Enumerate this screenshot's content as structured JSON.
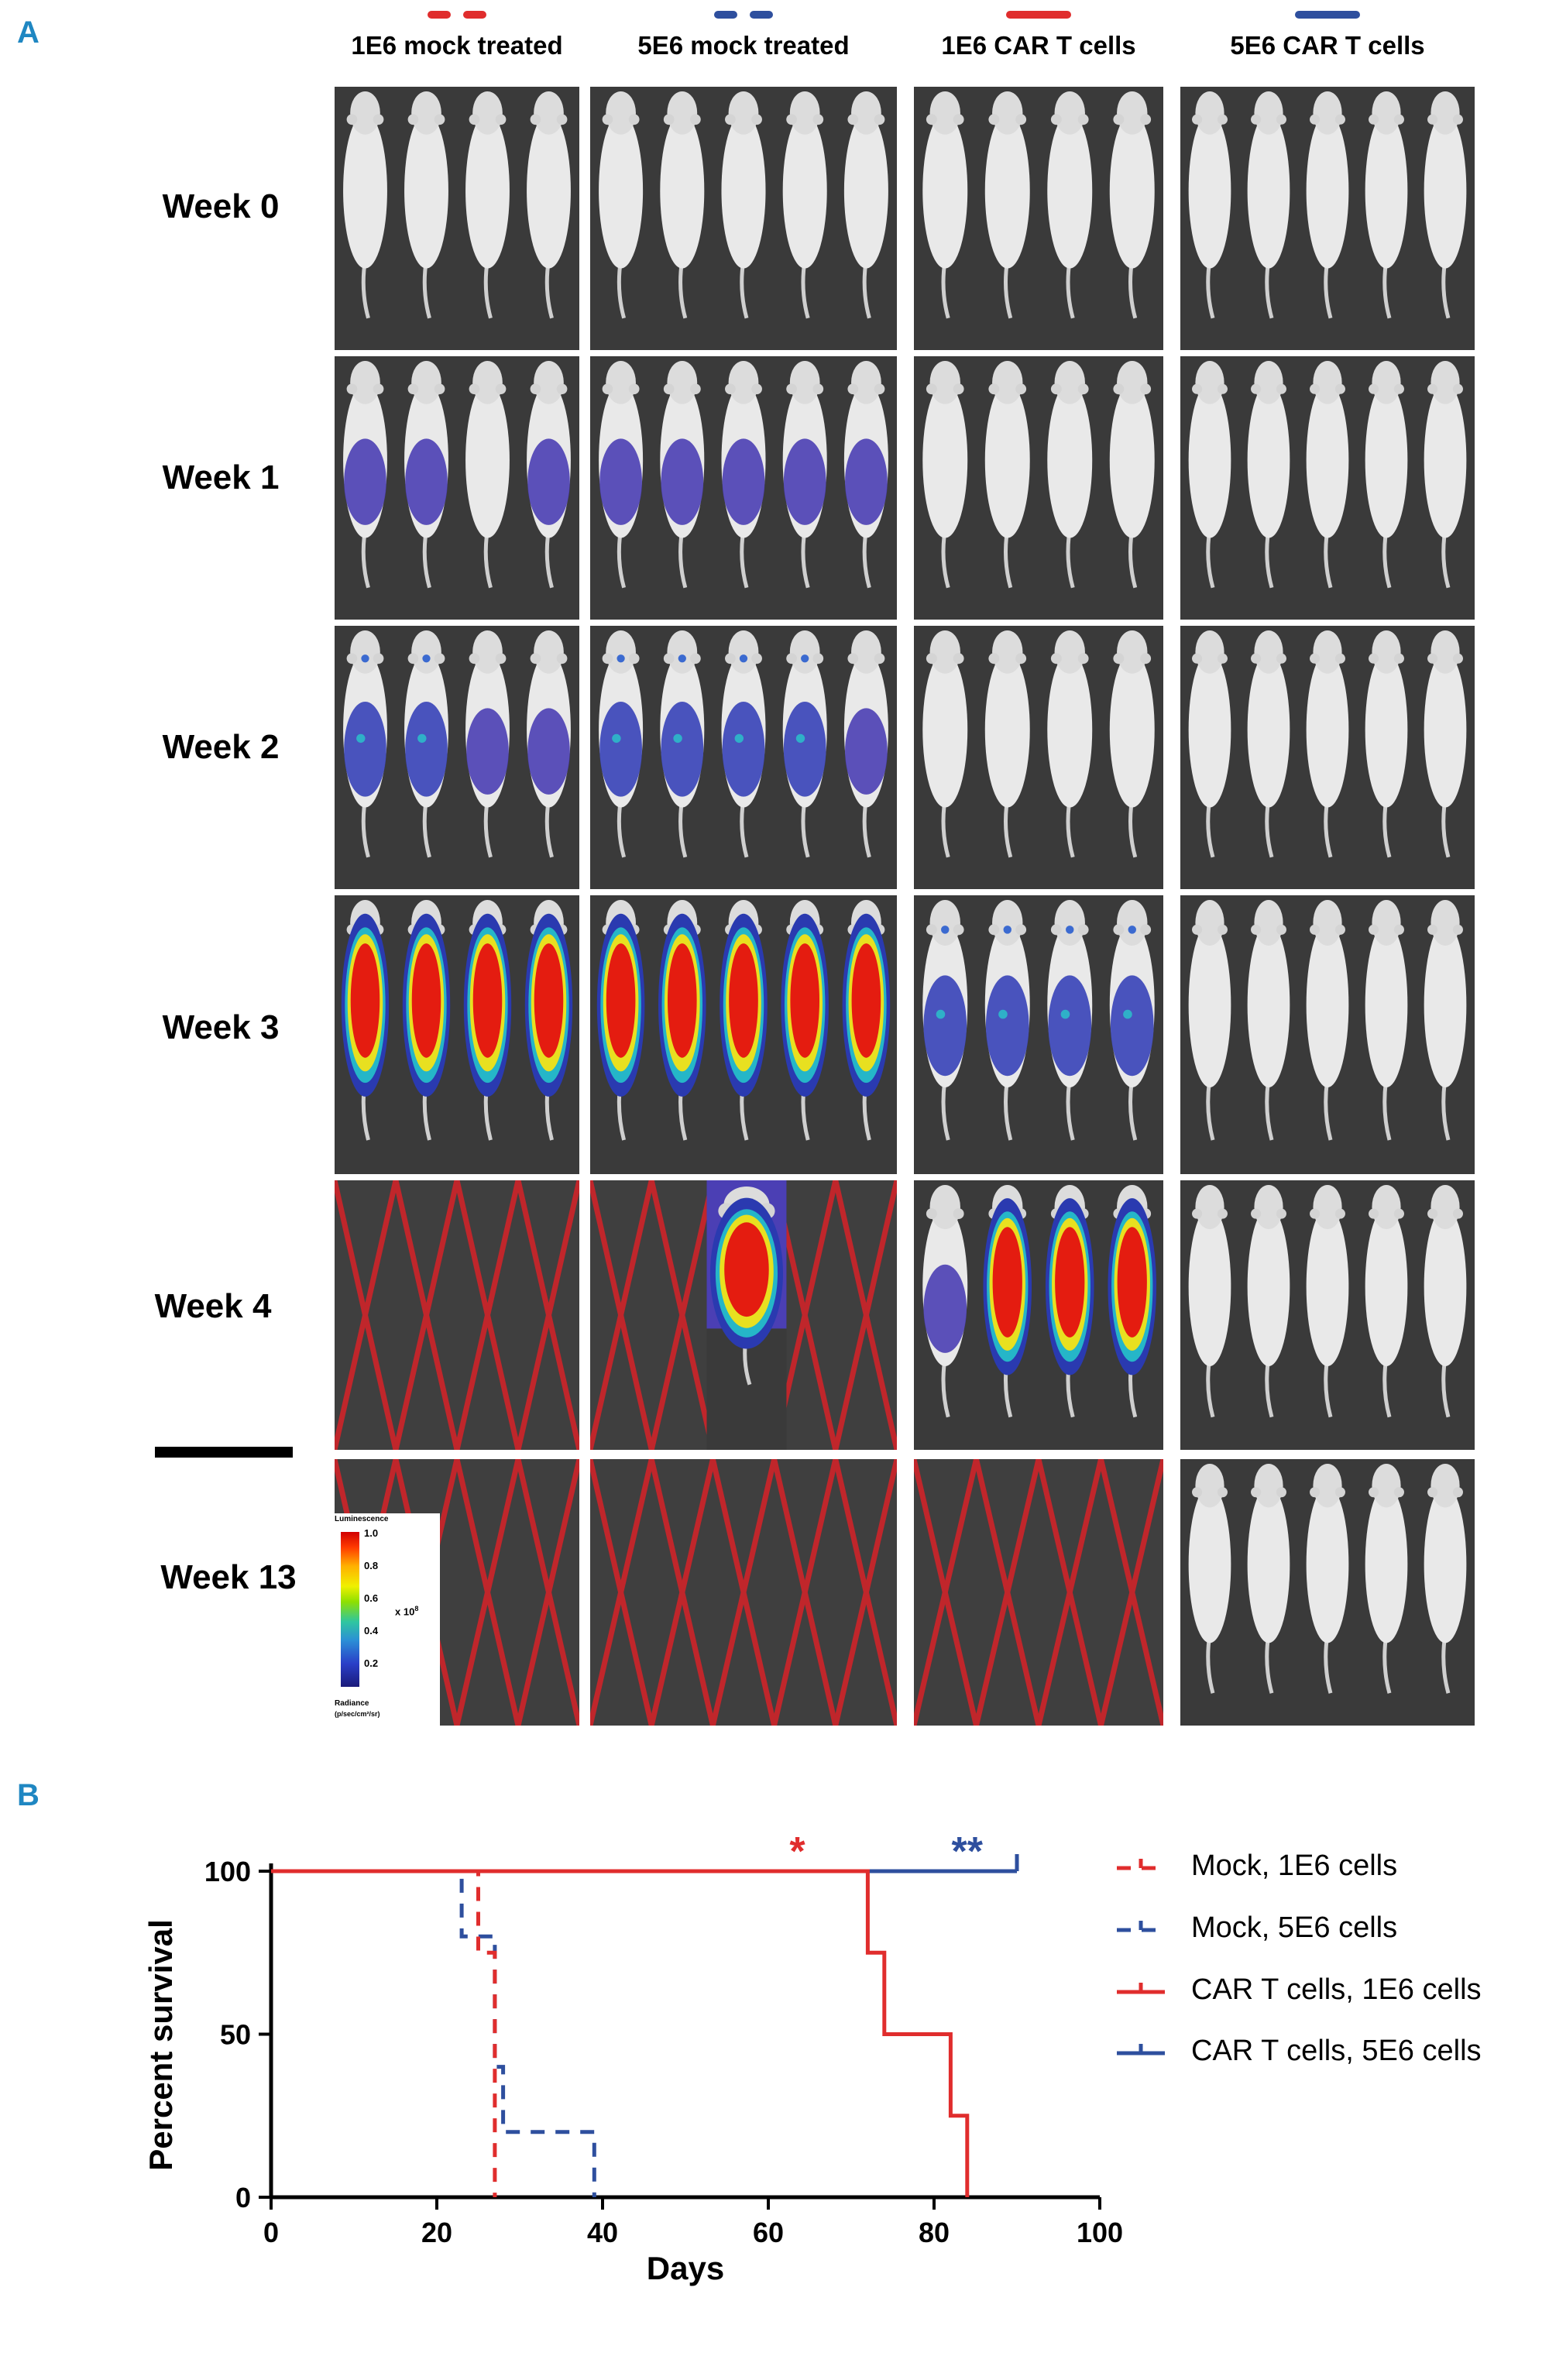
{
  "panel_a": {
    "letter": "A",
    "groups": [
      {
        "label": "1E6 mock treated",
        "color": "#e02d2d",
        "dashed": true
      },
      {
        "label": "5E6 mock treated",
        "color": "#2e4f9e",
        "dashed": true
      },
      {
        "label": "1E6 CAR T cells",
        "color": "#e02d2d",
        "dashed": false
      },
      {
        "label": "5E6 CAR T cells",
        "color": "#2e4f9e",
        "dashed": false
      }
    ],
    "weeks": [
      "Week 0",
      "Week 1",
      "Week 2",
      "Week 3",
      "Week 4",
      "Week 13"
    ],
    "colorbar": {
      "title": "Luminescence",
      "ticks": [
        "1.0",
        "0.8",
        "0.6",
        "0.4",
        "0.2"
      ],
      "multiplier": "x 10",
      "exponent": "8",
      "unit_label": "Radiance",
      "unit": "(p/sec/cm²/sr)"
    }
  },
  "panel_b": {
    "letter": "B",
    "chart_data": {
      "type": "line",
      "subtype": "kaplan-meier",
      "xlabel": "Days",
      "ylabel": "Percent survival",
      "xlim": [
        0,
        100
      ],
      "ylim": [
        0,
        100
      ],
      "xticks": [
        0,
        20,
        40,
        60,
        80,
        100
      ],
      "yticks": [
        0,
        50,
        100
      ],
      "series": [
        {
          "name": "Mock, 1E6 cells",
          "color": "#e02d2d",
          "dashed": true,
          "steps": [
            [
              0,
              100
            ],
            [
              25,
              100
            ],
            [
              25,
              75
            ],
            [
              27,
              75
            ],
            [
              27,
              0
            ]
          ],
          "censor": []
        },
        {
          "name": "Mock, 5E6 cells",
          "color": "#2e4f9e",
          "dashed": true,
          "steps": [
            [
              0,
              100
            ],
            [
              23,
              100
            ],
            [
              23,
              80
            ],
            [
              27,
              80
            ],
            [
              27,
              40
            ],
            [
              28,
              40
            ],
            [
              28,
              20
            ],
            [
              39,
              20
            ],
            [
              39,
              0
            ]
          ],
          "censor": []
        },
        {
          "name": "CAR T cells, 1E6 cells",
          "color": "#e02d2d",
          "dashed": false,
          "steps": [
            [
              0,
              100
            ],
            [
              72,
              100
            ],
            [
              72,
              75
            ],
            [
              74,
              75
            ],
            [
              74,
              50
            ],
            [
              82,
              50
            ],
            [
              82,
              25
            ],
            [
              84,
              25
            ],
            [
              84,
              0
            ]
          ],
          "censor": []
        },
        {
          "name": "CAR T cells, 5E6 cells",
          "color": "#2e4f9e",
          "dashed": false,
          "steps": [
            [
              0,
              100
            ],
            [
              90,
              100
            ]
          ],
          "censor": [
            90
          ]
        }
      ],
      "annotations": [
        {
          "text": "*",
          "x": 63.5,
          "y": 100,
          "color": "#e02d2d"
        },
        {
          "text": "**",
          "x": 84,
          "y": 100,
          "color": "#2e4f9e"
        }
      ]
    }
  }
}
